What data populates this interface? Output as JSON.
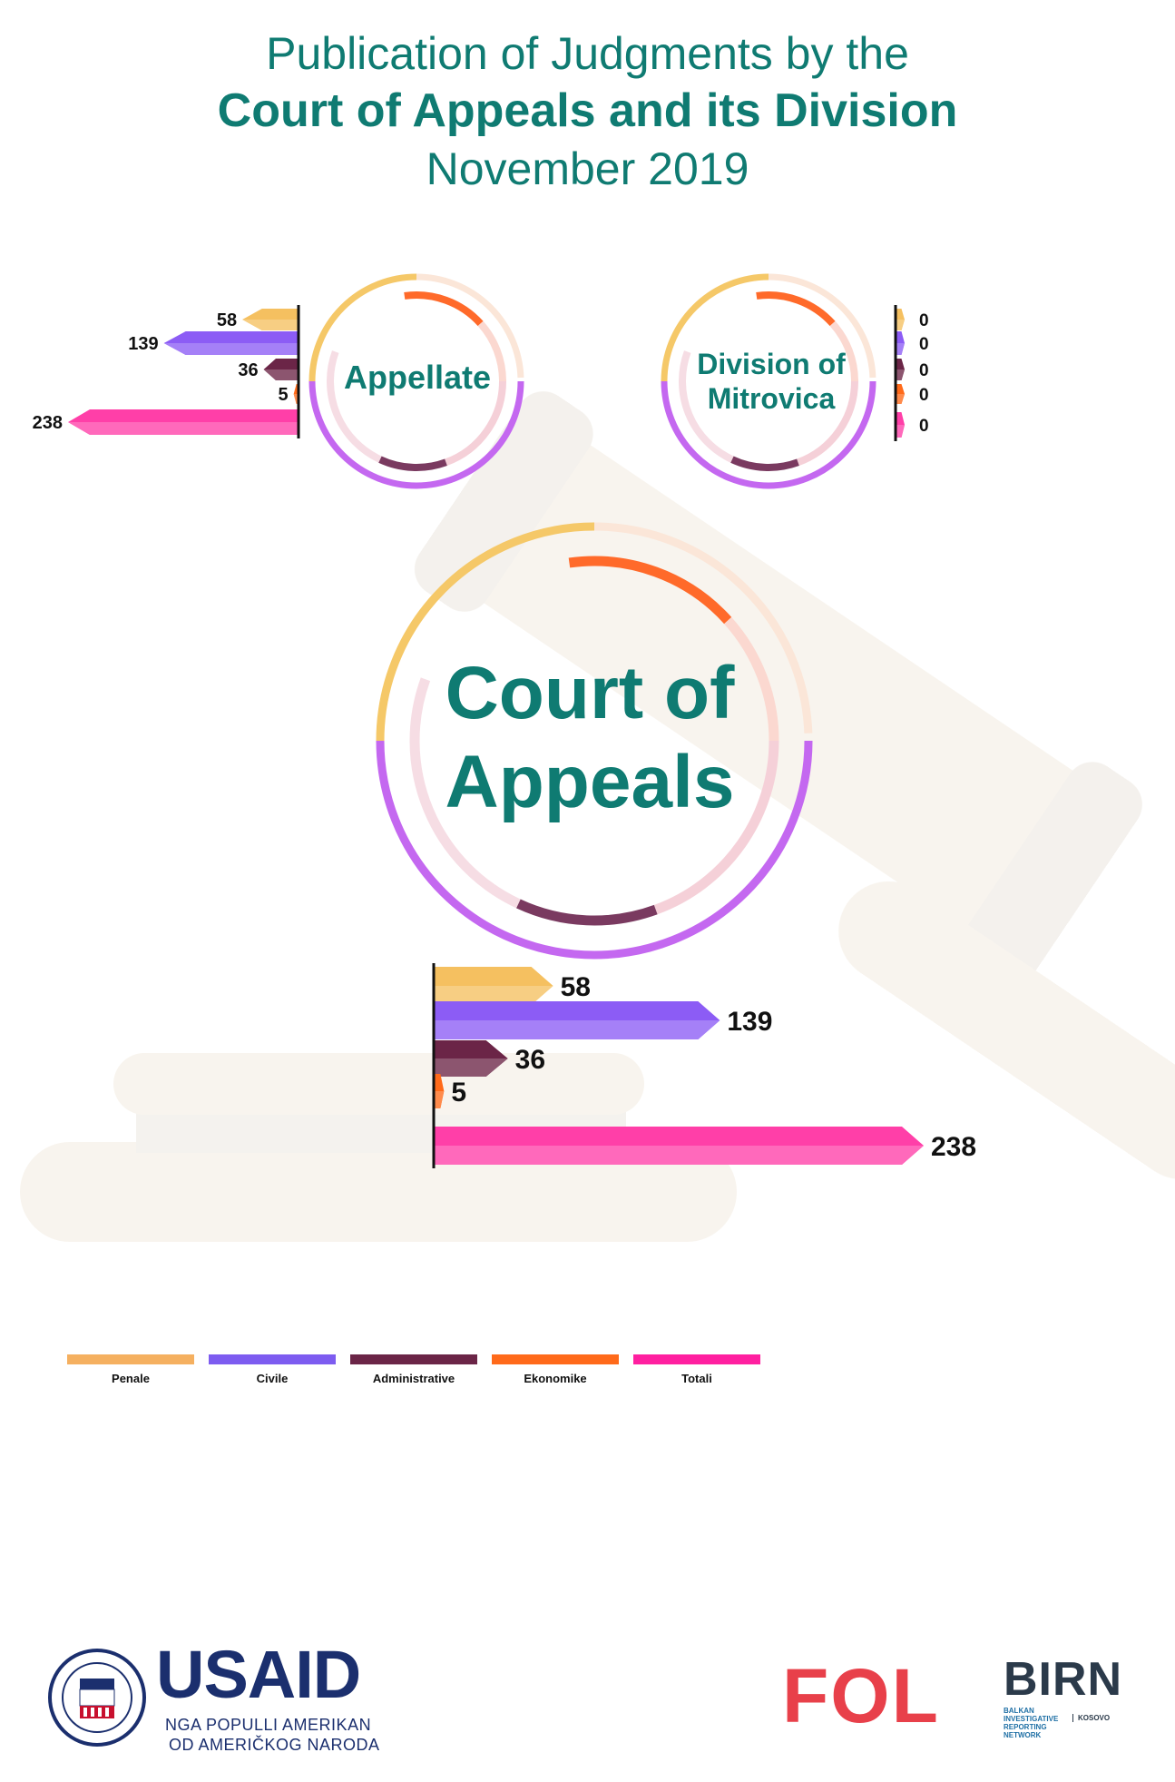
{
  "title": {
    "line1": "Publication of Judgments by the",
    "line2": "Court of Appeals and its Division",
    "line3": "November 2019"
  },
  "ring_labels": {
    "appellate": "Appellate",
    "mitrovica": "Division of Mitrovica",
    "court": "Court of Appeals"
  },
  "colors": {
    "penale": "#f5c060",
    "civile": "#8c5cf5",
    "administrative": "#6b2547",
    "ekonomike": "#ff6a1a",
    "totali": "#ff3fa8",
    "title": "#0f7b72"
  },
  "chart_data": [
    {
      "type": "bar",
      "orientation": "horizontal",
      "subtitle": "Appellate",
      "categories": [
        "Penale",
        "Civile",
        "Administrative",
        "Ekonomike",
        "Totali"
      ],
      "values": [
        58,
        139,
        36,
        5,
        238
      ]
    },
    {
      "type": "bar",
      "orientation": "horizontal",
      "subtitle": "Division of Mitrovica",
      "categories": [
        "Penale",
        "Civile",
        "Administrative",
        "Ekonomike",
        "Totali"
      ],
      "values": [
        0,
        0,
        0,
        0,
        0
      ]
    },
    {
      "type": "bar",
      "orientation": "horizontal",
      "subtitle": "Court of Appeals",
      "categories": [
        "Penale",
        "Civile",
        "Administrative",
        "Ekonomike",
        "Totali"
      ],
      "values": [
        58,
        139,
        36,
        5,
        238
      ]
    }
  ],
  "legend": {
    "items": [
      {
        "label": "Penale",
        "color": "#f5b060"
      },
      {
        "label": "Civile",
        "color": "#7d5cf0"
      },
      {
        "label": "Administrative",
        "color": "#6b2547"
      },
      {
        "label": "Ekonomike",
        "color": "#ff6a1a"
      },
      {
        "label": "Totali",
        "color": "#ff1fa0"
      }
    ]
  },
  "logos": {
    "usaid": "USAID",
    "usaid_line1": "NGA POPULLI AMERIKAN",
    "usaid_line2": "OD AMERIČKOG NARODA",
    "fol": "FOL",
    "birn": "BIRN",
    "birn_sub": "BALKAN INVESTIGATIVE REPORTING NETWORK",
    "birn_kosovo": "KOSOVO"
  }
}
